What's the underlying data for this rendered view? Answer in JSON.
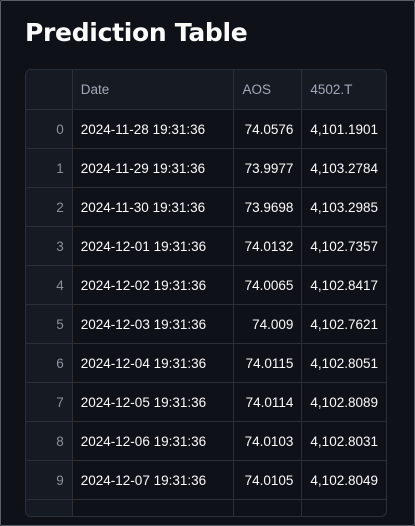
{
  "page": {
    "title": "Prediction Table"
  },
  "table": {
    "columns": [
      "",
      "Date",
      "AOS",
      "4502.T"
    ],
    "rows": [
      {
        "index": "0",
        "date": "2024-11-28 19:31:36",
        "aos": "74.0576",
        "value": "4,101.1901"
      },
      {
        "index": "1",
        "date": "2024-11-29 19:31:36",
        "aos": "73.9977",
        "value": "4,103.2784"
      },
      {
        "index": "2",
        "date": "2024-11-30 19:31:36",
        "aos": "73.9698",
        "value": "4,103.2985"
      },
      {
        "index": "3",
        "date": "2024-12-01 19:31:36",
        "aos": "74.0132",
        "value": "4,102.7357"
      },
      {
        "index": "4",
        "date": "2024-12-02 19:31:36",
        "aos": "74.0065",
        "value": "4,102.8417"
      },
      {
        "index": "5",
        "date": "2024-12-03 19:31:36",
        "aos": "74.009",
        "value": "4,102.7621"
      },
      {
        "index": "6",
        "date": "2024-12-04 19:31:36",
        "aos": "74.0115",
        "value": "4,102.8051"
      },
      {
        "index": "7",
        "date": "2024-12-05 19:31:36",
        "aos": "74.0114",
        "value": "4,102.8089"
      },
      {
        "index": "8",
        "date": "2024-12-06 19:31:36",
        "aos": "74.0103",
        "value": "4,102.8031"
      },
      {
        "index": "9",
        "date": "2024-12-07 19:31:36",
        "aos": "74.0105",
        "value": "4,102.8049"
      }
    ]
  }
}
